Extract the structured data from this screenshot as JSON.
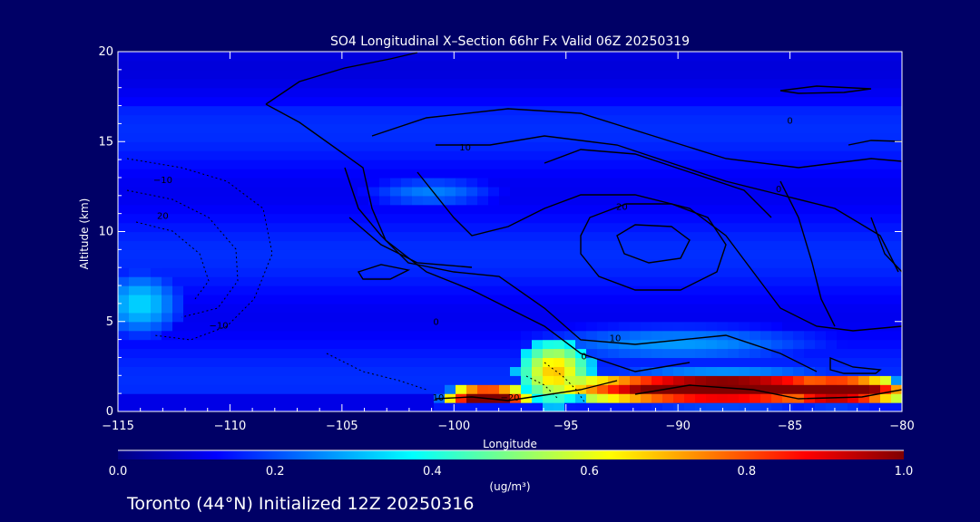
{
  "chart_data": {
    "type": "heatmap",
    "title": "SO4 Longitudinal X–Section 66hr  Fx Valid 06Z 20250319",
    "xlabel": "Longitude",
    "ylabel": "Altitude (km)",
    "xlim": [
      -115,
      -80
    ],
    "ylim": [
      0,
      20
    ],
    "x_ticks": [
      -115,
      -110,
      -105,
      -100,
      -95,
      -90,
      -85,
      -80
    ],
    "x_tick_labels": [
      "−115",
      "−110",
      "−105",
      "−100",
      "−95",
      "−90",
      "−85",
      "−80"
    ],
    "y_ticks": [
      0,
      5,
      10,
      15,
      20
    ],
    "y_tick_labels": [
      "0",
      "5",
      "10",
      "15",
      "20"
    ],
    "colorbar": {
      "range": [
        0.0,
        1.0
      ],
      "ticks": [
        0.0,
        0.2,
        0.4,
        0.6,
        0.8,
        1.0
      ],
      "tick_labels": [
        "0.0",
        "0.2",
        "0.4",
        "0.6",
        "0.8",
        "1.0"
      ],
      "label": "(ug/m³)",
      "colors": [
        "#000080",
        "#0000ff",
        "#0080ff",
        "#00ffff",
        "#80ff80",
        "#ffff00",
        "#ff8000",
        "#ff0000",
        "#800000"
      ]
    },
    "field": {
      "background": 0.14,
      "blobs": [
        {
          "lon": -88,
          "alt": 1.3,
          "rlon": 7.5,
          "ralt": 0.9,
          "v": 1.0
        },
        {
          "lon": -83,
          "alt": 1.2,
          "rlon": 3.5,
          "ralt": 0.8,
          "v": 1.0
        },
        {
          "lon": -98.5,
          "alt": 0.9,
          "rlon": 2.0,
          "ralt": 0.5,
          "v": 1.0
        },
        {
          "lon": -95.5,
          "alt": 2.2,
          "rlon": 1.8,
          "ralt": 2.0,
          "v": 0.55
        },
        {
          "lon": -114,
          "alt": 6,
          "rlon": 2.0,
          "ralt": 2.0,
          "v": 0.27
        },
        {
          "lon": -101,
          "alt": 12.2,
          "rlon": 3.5,
          "ralt": 1.0,
          "v": 0.2
        },
        {
          "lon": -90,
          "alt": 3.8,
          "rlon": 8.0,
          "ralt": 1.2,
          "v": 0.22
        }
      ]
    },
    "contour_labels": [
      {
        "lon": -99.5,
        "alt": 14.5,
        "text": "10"
      },
      {
        "lon": -85,
        "alt": 16.0,
        "text": "0"
      },
      {
        "lon": -85.5,
        "alt": 12.2,
        "text": "0"
      },
      {
        "lon": -92.5,
        "alt": 11.2,
        "text": "20"
      },
      {
        "lon": -113,
        "alt": 12.7,
        "text": "−10"
      },
      {
        "lon": -113,
        "alt": 10.7,
        "text": "20"
      },
      {
        "lon": -110.5,
        "alt": 4.6,
        "text": "−10"
      },
      {
        "lon": -100.8,
        "alt": 4.8,
        "text": "0"
      },
      {
        "lon": -92.8,
        "alt": 3.9,
        "text": "10"
      },
      {
        "lon": -94.2,
        "alt": 2.9,
        "text": "0"
      },
      {
        "lon": -100.7,
        "alt": 0.6,
        "text": "10"
      },
      {
        "lon": -97.5,
        "alt": 0.6,
        "text": "−20"
      }
    ]
  },
  "footer": {
    "text": "Toronto (44°N) Initialized 12Z 20250316"
  }
}
